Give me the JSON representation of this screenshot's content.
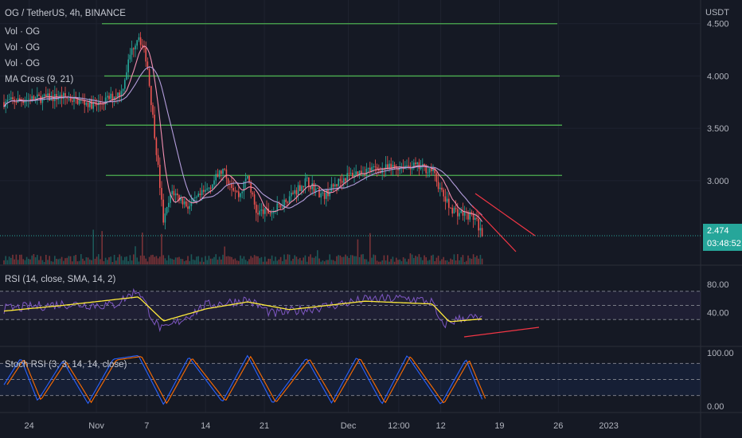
{
  "header": {
    "title": "OG / TetherUS, 4h, BINANCE",
    "indicators": [
      "Vol · OG",
      "Vol · OG",
      "Vol · OG",
      "MA Cross (9, 21)"
    ],
    "currency": "USDT"
  },
  "last_price": {
    "value": "2.474",
    "countdown": "03:48:52"
  },
  "rsi_legend": "RSI (14, close, SMA, 14, 2)",
  "stoch_legend": "Stoch RSI (3, 3, 14, 14, close)",
  "colors": {
    "background": "#151924",
    "up": "#26a69a",
    "down": "#ef5350",
    "level_lines": "#4caf50",
    "rsi_line": "#7e57c2",
    "rsi_ma": "#ffeb3b",
    "stoch_k": "#2962ff",
    "stoch_d": "#ff6d00",
    "trend_lines": "#f23645"
  },
  "chart_data": [
    {
      "type": "line",
      "name": "price",
      "x_ticks": [
        "24",
        "Nov",
        "7",
        "14",
        "21",
        "Dec",
        "12:00",
        "12",
        "19",
        "26",
        "2023"
      ],
      "y_ticks": [
        "4.500",
        "4.000",
        "3.500",
        "3.000"
      ],
      "ylim": [
        2.2,
        4.65
      ],
      "horizontal_levels": [
        4.5,
        4.0,
        3.53,
        3.05
      ],
      "close_path": [
        {
          "x": "Oct 21",
          "y": 3.75
        },
        {
          "x": "Oct 24",
          "y": 3.78
        },
        {
          "x": "Oct 28",
          "y": 3.8
        },
        {
          "x": "Nov 1",
          "y": 3.72
        },
        {
          "x": "Nov 4",
          "y": 3.85
        },
        {
          "x": "Nov 5",
          "y": 4.2
        },
        {
          "x": "Nov 6",
          "y": 4.4
        },
        {
          "x": "Nov 7",
          "y": 4.15
        },
        {
          "x": "Nov 8",
          "y": 3.4
        },
        {
          "x": "Nov 9",
          "y": 2.6
        },
        {
          "x": "Nov 10",
          "y": 2.9
        },
        {
          "x": "Nov 12",
          "y": 2.75
        },
        {
          "x": "Nov 14",
          "y": 2.9
        },
        {
          "x": "Nov 16",
          "y": 3.1
        },
        {
          "x": "Nov 18",
          "y": 2.85
        },
        {
          "x": "Nov 19",
          "y": 3.05
        },
        {
          "x": "Nov 20",
          "y": 2.7
        },
        {
          "x": "Nov 22",
          "y": 2.7
        },
        {
          "x": "Nov 24",
          "y": 2.85
        },
        {
          "x": "Nov 26",
          "y": 3.0
        },
        {
          "x": "Nov 28",
          "y": 2.85
        },
        {
          "x": "Nov 30",
          "y": 3.0
        },
        {
          "x": "Dec 1",
          "y": 3.05
        },
        {
          "x": "Dec 3",
          "y": 3.1
        },
        {
          "x": "Dec 6",
          "y": 3.12
        },
        {
          "x": "Dec 8",
          "y": 3.15
        },
        {
          "x": "Dec 10",
          "y": 3.12
        },
        {
          "x": "Dec 11",
          "y": 3.1
        },
        {
          "x": "Dec 12",
          "y": 2.9
        },
        {
          "x": "Dec 13",
          "y": 2.75
        },
        {
          "x": "Dec 14",
          "y": 2.7
        },
        {
          "x": "Dec 15",
          "y": 2.68
        },
        {
          "x": "Dec 16",
          "y": 2.65
        },
        {
          "x": "Dec 17",
          "y": 2.474
        }
      ],
      "last_value": 2.474
    },
    {
      "type": "line",
      "name": "RSI",
      "y_ticks": [
        "80.00",
        "40.00"
      ],
      "ylim": [
        0,
        100
      ],
      "bands": [
        70,
        30
      ],
      "rsi_path": [
        {
          "x": "Oct 21",
          "y": 45
        },
        {
          "x": "Oct 28",
          "y": 52
        },
        {
          "x": "Nov 3",
          "y": 50
        },
        {
          "x": "Nov 6",
          "y": 72
        },
        {
          "x": "Nov 8",
          "y": 25
        },
        {
          "x": "Nov 9",
          "y": 15
        },
        {
          "x": "Nov 14",
          "y": 50
        },
        {
          "x": "Nov 19",
          "y": 58
        },
        {
          "x": "Nov 22",
          "y": 38
        },
        {
          "x": "Nov 28",
          "y": 48
        },
        {
          "x": "Dec 3",
          "y": 58
        },
        {
          "x": "Dec 8",
          "y": 60
        },
        {
          "x": "Dec 11",
          "y": 55
        },
        {
          "x": "Dec 12",
          "y": 22
        },
        {
          "x": "Dec 15",
          "y": 34
        },
        {
          "x": "Dec 17",
          "y": 30
        }
      ],
      "rsi_ma_path": [
        {
          "x": "Oct 21",
          "y": 42
        },
        {
          "x": "Oct 28",
          "y": 50
        },
        {
          "x": "Nov 6",
          "y": 62
        },
        {
          "x": "Nov 9",
          "y": 28
        },
        {
          "x": "Nov 14",
          "y": 45
        },
        {
          "x": "Nov 19",
          "y": 55
        },
        {
          "x": "Nov 24",
          "y": 44
        },
        {
          "x": "Dec 3",
          "y": 56
        },
        {
          "x": "Dec 11",
          "y": 52
        },
        {
          "x": "Dec 13",
          "y": 27
        },
        {
          "x": "Dec 17",
          "y": 31
        }
      ]
    },
    {
      "type": "line",
      "name": "Stoch RSI",
      "y_ticks": [
        "100.00",
        "0.00"
      ],
      "ylim": [
        0,
        100
      ],
      "bands": [
        80,
        20
      ],
      "k_path": [
        {
          "x": "Oct 21",
          "y": 40
        },
        {
          "x": "Oct 23",
          "y": 90
        },
        {
          "x": "Oct 25",
          "y": 10
        },
        {
          "x": "Oct 28",
          "y": 85
        },
        {
          "x": "Oct 31",
          "y": 5
        },
        {
          "x": "Nov 3",
          "y": 88
        },
        {
          "x": "Nov 6",
          "y": 95
        },
        {
          "x": "Nov 9",
          "y": 3
        },
        {
          "x": "Nov 12",
          "y": 92
        },
        {
          "x": "Nov 16",
          "y": 8
        },
        {
          "x": "Nov 19",
          "y": 95
        },
        {
          "x": "Nov 22",
          "y": 5
        },
        {
          "x": "Nov 26",
          "y": 90
        },
        {
          "x": "Nov 29",
          "y": 6
        },
        {
          "x": "Dec 2",
          "y": 92
        },
        {
          "x": "Dec 5",
          "y": 4
        },
        {
          "x": "Dec 8",
          "y": 95
        },
        {
          "x": "Dec 12",
          "y": 3
        },
        {
          "x": "Dec 15",
          "y": 88
        },
        {
          "x": "Dec 17",
          "y": 10
        }
      ]
    }
  ]
}
